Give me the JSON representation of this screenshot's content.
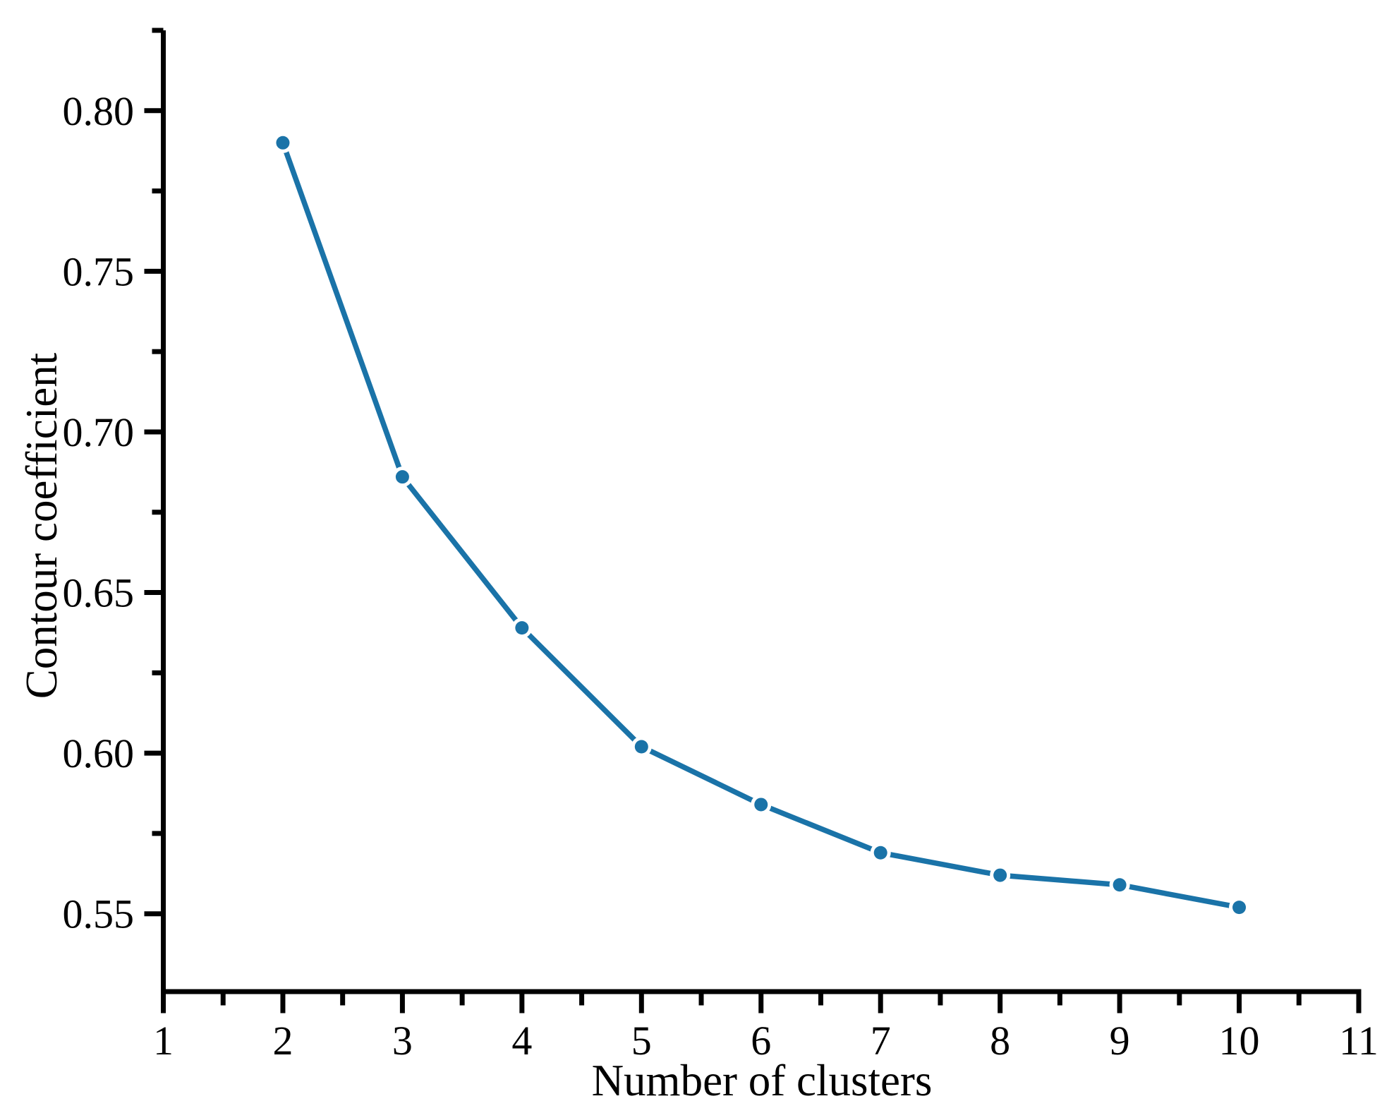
{
  "chart_data": {
    "type": "line",
    "title": "",
    "xlabel": "Number of clusters",
    "ylabel": "Contour coefficient",
    "x": [
      2,
      3,
      4,
      5,
      6,
      7,
      8,
      9,
      10
    ],
    "series": [
      {
        "name": "contour-coefficient",
        "values": [
          0.79,
          0.686,
          0.639,
          0.602,
          0.584,
          0.569,
          0.562,
          0.559,
          0.552
        ]
      }
    ],
    "xlim": [
      1,
      11
    ],
    "ylim": [
      0.525,
      0.825
    ],
    "x_major_ticks": [
      1,
      2,
      3,
      4,
      5,
      6,
      7,
      8,
      9,
      10,
      11
    ],
    "x_major_tick_labels": [
      "1",
      "2",
      "3",
      "4",
      "5",
      "6",
      "7",
      "8",
      "9",
      "10",
      "11"
    ],
    "x_minor_ticks": [
      1.5,
      2.5,
      3.5,
      4.5,
      5.5,
      6.5,
      7.5,
      8.5,
      9.5,
      10.5
    ],
    "y_major_ticks": [
      0.55,
      0.6,
      0.65,
      0.7,
      0.75,
      0.8
    ],
    "y_major_tick_labels": [
      "0.55",
      "0.60",
      "0.65",
      "0.70",
      "0.75",
      "0.80"
    ],
    "y_minor_ticks": [
      0.575,
      0.625,
      0.675,
      0.725,
      0.775,
      0.825
    ],
    "grid": false,
    "legend": null,
    "line_color": "#1a73a8",
    "marker": "circle",
    "marker_color": "#1a73a8",
    "axis_color": "#000000",
    "background_color": "#ffffff"
  }
}
